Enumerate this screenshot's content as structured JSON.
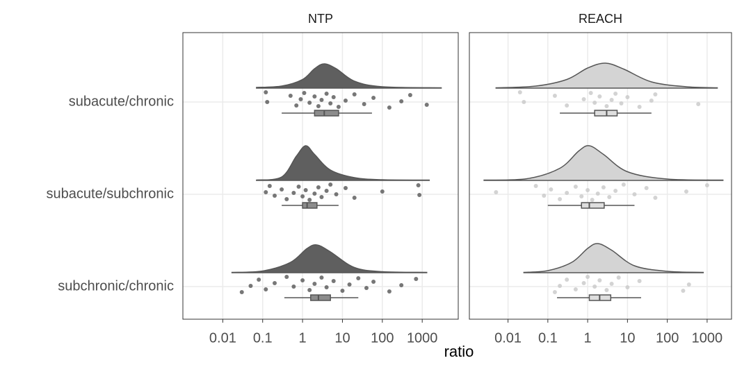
{
  "chart_data": [
    {
      "type": "raincloud",
      "title": "NTP",
      "x_label": "ratio",
      "log_x": true,
      "grid": true,
      "categories": [
        "subacute/chronic",
        "subacute/subchronic",
        "subchronic/chronic"
      ],
      "fill": "#5f5f5f",
      "point_color": "#555555",
      "box_fill": "#8c8c8c",
      "xlim": [
        0.001,
        8000
      ],
      "xticks": [
        0.01,
        0.1,
        1,
        10,
        100,
        1000
      ],
      "groups": [
        {
          "density": {
            "x": [
              0.07,
              0.3,
              1,
              2,
              3.5,
              7,
              20,
              100,
              3000
            ],
            "y": [
              0.02,
              0.06,
              0.25,
              0.56,
              0.7,
              0.56,
              0.2,
              0.04,
              0.01
            ]
          },
          "points": [
            0.12,
            0.13,
            0.5,
            0.7,
            0.9,
            1.1,
            1.5,
            2,
            2.5,
            3,
            4,
            5,
            6,
            8,
            12,
            20,
            35,
            60,
            150,
            300,
            500,
            1300
          ],
          "box": {
            "min": 0.3,
            "q1": 2,
            "median": 3.5,
            "q3": 8,
            "max": 55
          }
        },
        {
          "density": {
            "x": [
              0.07,
              0.3,
              0.7,
              1.2,
              2,
              5,
              20,
              100,
              1500
            ],
            "y": [
              0.01,
              0.1,
              0.7,
              1,
              0.75,
              0.3,
              0.08,
              0.02,
              0.01
            ]
          },
          "points": [
            0.12,
            0.15,
            0.2,
            0.3,
            0.4,
            0.6,
            0.8,
            1,
            1.2,
            1.5,
            2,
            2.5,
            3,
            4,
            5,
            7,
            12,
            20,
            100,
            800,
            850
          ],
          "box": {
            "min": 0.3,
            "q1": 1,
            "median": 1.3,
            "q3": 2.3,
            "max": 8
          }
        },
        {
          "density": {
            "x": [
              0.017,
              0.1,
              0.5,
              1.3,
              2.3,
              5,
              20,
              100,
              1300
            ],
            "y": [
              0.01,
              0.05,
              0.3,
              0.7,
              0.8,
              0.6,
              0.15,
              0.03,
              0.01
            ]
          },
          "points": [
            0.03,
            0.05,
            0.08,
            0.12,
            0.2,
            0.4,
            0.6,
            1,
            1.5,
            2,
            3,
            4,
            6,
            10,
            15,
            25,
            40,
            60,
            150,
            300,
            700
          ],
          "box": {
            "min": 0.35,
            "q1": 1.6,
            "median": 2.5,
            "q3": 5,
            "max": 25
          }
        }
      ]
    },
    {
      "type": "raincloud",
      "title": "REACH",
      "log_x": true,
      "grid": true,
      "fill": "#d4d4d4",
      "point_color": "#c8c8c8",
      "box_fill": "#dedede",
      "xlim": [
        0.00107,
        4100
      ],
      "xticks": [
        0.01,
        0.1,
        1,
        10,
        100,
        1000
      ],
      "groups": [
        {
          "density": {
            "x": [
              0.005,
              0.05,
              0.3,
              1,
              2.8,
              8,
              40,
              300,
              1800
            ],
            "y": [
              0.01,
              0.06,
              0.25,
              0.58,
              0.72,
              0.55,
              0.18,
              0.04,
              0.01
            ]
          },
          "points": [
            0.02,
            0.025,
            0.15,
            0.3,
            0.8,
            1.2,
            1.5,
            2,
            3,
            4,
            5,
            7,
            10,
            20,
            40,
            50,
            600
          ],
          "box": {
            "min": 0.2,
            "q1": 1.5,
            "median": 3,
            "q3": 5.5,
            "max": 40
          }
        },
        {
          "density": {
            "x": [
              0.0025,
              0.03,
              0.2,
              0.6,
              1.1,
              2.5,
              10,
              100,
              2500
            ],
            "y": [
              0.01,
              0.05,
              0.35,
              0.85,
              1,
              0.75,
              0.25,
              0.04,
              0.01
            ]
          },
          "points": [
            0.005,
            0.05,
            0.08,
            0.12,
            0.2,
            0.3,
            0.5,
            0.7,
            1,
            1.3,
            1.8,
            2.5,
            3.5,
            5,
            8,
            15,
            30,
            50,
            300,
            1000
          ],
          "box": {
            "min": 0.1,
            "q1": 0.7,
            "median": 1.1,
            "q3": 2.6,
            "max": 15
          }
        },
        {
          "density": {
            "x": [
              0.025,
              0.1,
              0.4,
              1,
              1.8,
              4,
              15,
              100,
              800
            ],
            "y": [
              0.01,
              0.06,
              0.3,
              0.7,
              0.84,
              0.65,
              0.2,
              0.04,
              0.01
            ]
          },
          "points": [
            0.15,
            0.2,
            0.3,
            0.5,
            0.8,
            1,
            1.5,
            2,
            3,
            4,
            6,
            10,
            20,
            250,
            350
          ],
          "box": {
            "min": 0.17,
            "q1": 1.1,
            "median": 2,
            "q3": 3.8,
            "max": 22
          }
        }
      ]
    }
  ]
}
